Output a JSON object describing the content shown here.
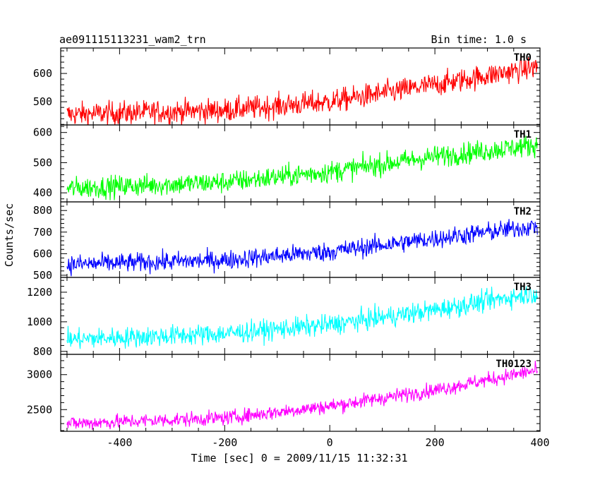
{
  "chart_data": {
    "type": "line",
    "title": "ae091115113231_wam2_trn",
    "bin_time": "Bin time: 1.0 s",
    "xlabel": "Time [sec] 0 = 2009/11/15 11:32:31",
    "ylabel": "Counts/sec",
    "xlim": [
      -512,
      400
    ],
    "x_ticks": [
      -400,
      -200,
      0,
      200,
      400
    ],
    "panels": [
      {
        "name": "TH0",
        "color": "#ff0000",
        "ylim": [
          418,
          690
        ],
        "y_ticks": [
          500,
          600
        ],
        "trend": [
          [
            -500,
            455
          ],
          [
            -200,
            470
          ],
          [
            0,
            500
          ],
          [
            200,
            560
          ],
          [
            400,
            625
          ]
        ],
        "noise": 30
      },
      {
        "name": "TH1",
        "color": "#00ff00",
        "ylim": [
          370,
          625
        ],
        "y_ticks": [
          400,
          500,
          600
        ],
        "trend": [
          [
            -500,
            415
          ],
          [
            -200,
            435
          ],
          [
            0,
            470
          ],
          [
            200,
            520
          ],
          [
            400,
            560
          ]
        ],
        "noise": 26
      },
      {
        "name": "TH2",
        "color": "#0000ff",
        "ylim": [
          490,
          840
        ],
        "y_ticks": [
          500,
          600,
          700,
          800
        ],
        "trend": [
          [
            -500,
            550
          ],
          [
            -200,
            570
          ],
          [
            0,
            610
          ],
          [
            200,
            670
          ],
          [
            400,
            730
          ]
        ],
        "noise": 32
      },
      {
        "name": "TH3",
        "color": "#00ffff",
        "ylim": [
          780,
          1300
        ],
        "y_ticks": [
          800,
          1000,
          1200
        ],
        "trend": [
          [
            -500,
            880
          ],
          [
            -200,
            920
          ],
          [
            0,
            980
          ],
          [
            200,
            1080
          ],
          [
            400,
            1200
          ]
        ],
        "noise": 50
      },
      {
        "name": "TH0123",
        "color": "#ff00ff",
        "ylim": [
          2190,
          3290
        ],
        "y_ticks": [
          2500,
          3000
        ],
        "trend": [
          [
            -500,
            2300
          ],
          [
            -200,
            2380
          ],
          [
            0,
            2550
          ],
          [
            200,
            2780
          ],
          [
            400,
            3070
          ]
        ],
        "noise": 75
      }
    ]
  }
}
